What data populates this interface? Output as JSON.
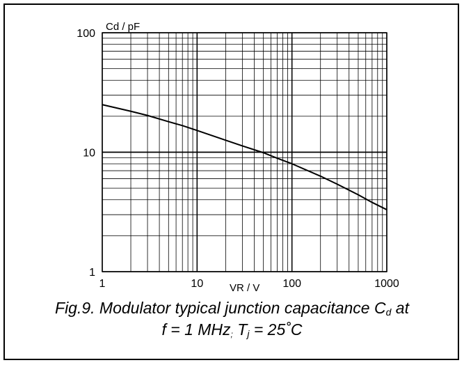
{
  "chart_data": {
    "type": "line",
    "x_scale": "log",
    "y_scale": "log",
    "xlim": [
      1,
      1000
    ],
    "ylim": [
      1,
      100
    ],
    "x_ticks": [
      "1",
      "10",
      "100",
      "1000"
    ],
    "y_ticks": [
      "1",
      "10",
      "100"
    ],
    "xlabel": "VR / V",
    "ylabel": "Cd / pF",
    "grid": true,
    "series": [
      {
        "x": [
          1,
          2,
          3,
          5,
          7,
          10,
          20,
          30,
          50,
          70,
          100,
          200,
          300,
          500,
          700,
          1000
        ],
        "y": [
          25,
          22,
          20.3,
          18,
          16.7,
          15.2,
          12.6,
          11.3,
          9.9,
          8.9,
          8.0,
          6.3,
          5.4,
          4.4,
          3.8,
          3.3
        ]
      }
    ]
  },
  "caption": {
    "line1_prefix": "Fig.9.  Modulator typical junction capacitance C",
    "line1_sub": "d",
    "line1_suffix": " at",
    "line2_prefix": "f = 1 MHz",
    "line2_sep": ";",
    "line2_mid": " T",
    "line2_sub": "j",
    "line2_suffix": " = 25˚C"
  }
}
